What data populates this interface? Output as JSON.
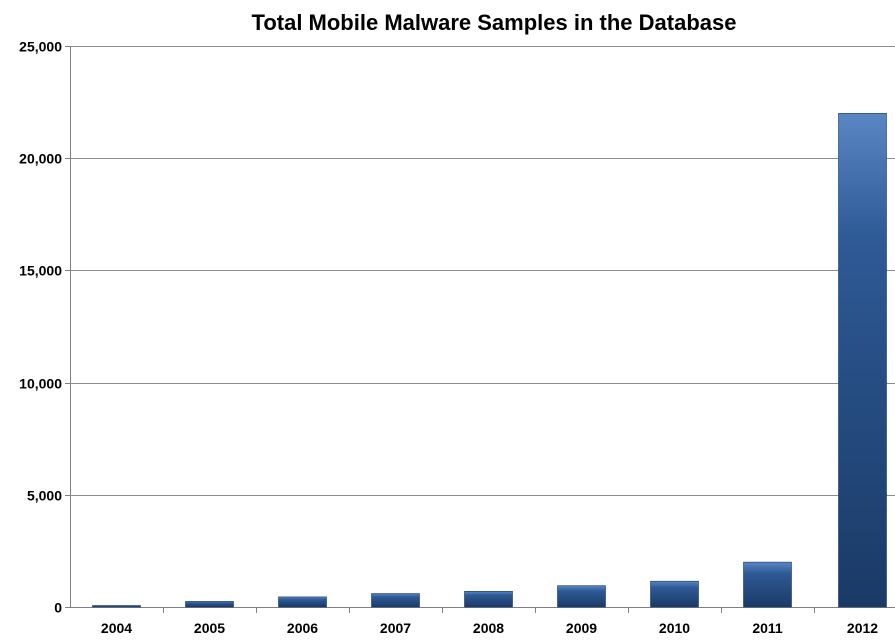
{
  "chart_data": {
    "type": "bar",
    "title": "Total Mobile Malware Samples in the Database",
    "xlabel": "",
    "ylabel": "",
    "categories": [
      "2004",
      "2005",
      "2006",
      "2007",
      "2008",
      "2009",
      "2010",
      "2011",
      "2012"
    ],
    "values": [
      20,
      250,
      450,
      600,
      700,
      950,
      1150,
      2000,
      22000
    ],
    "ylim": [
      0,
      25000
    ],
    "yticks": [
      0,
      5000,
      10000,
      15000,
      20000,
      25000
    ],
    "ytick_labels": [
      "0",
      "5,000",
      "10,000",
      "15,000",
      "20,000",
      "25,000"
    ],
    "grid": true,
    "legend": "none",
    "colors": {
      "bar_dark": "#1a3a66",
      "bar_mid": "#2e5a96",
      "bar_light": "#5a86c4",
      "gridline": "#8c8c8c",
      "axis": "#808080"
    }
  }
}
